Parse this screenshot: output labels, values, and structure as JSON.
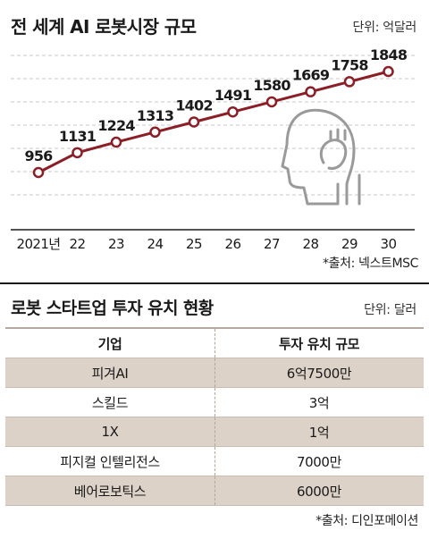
{
  "top": {
    "title": "전 세계 AI 로봇시장 규모",
    "unit": "단위: 억달러",
    "source": "*출처: 넥스트MSC"
  },
  "chart_data": {
    "type": "line",
    "title": "전 세계 AI 로봇시장 규모",
    "unit": "억달러",
    "categories": [
      "2021년",
      "22",
      "23",
      "24",
      "25",
      "26",
      "27",
      "28",
      "29",
      "30"
    ],
    "values": [
      956,
      1131,
      1224,
      1313,
      1402,
      1491,
      1580,
      1669,
      1758,
      1848
    ],
    "ylim": [
      600,
      2000
    ],
    "grid": true,
    "line_color": "#8b1e26",
    "grid_color": "#c9c9c9"
  },
  "bottom": {
    "title": "로봇 스타트업 투자 유치 현황",
    "unit": "단위: 달러",
    "source": "*출처: 디인포메이션",
    "headers": [
      "기업",
      "투자 유치 규모"
    ],
    "rows": [
      [
        "피겨AI",
        "6억7500만"
      ],
      [
        "스킬드",
        "3억"
      ],
      [
        "1X",
        "1억"
      ],
      [
        "피지컬 인텔리전스",
        "7000만"
      ],
      [
        "베어로보틱스",
        "6000만"
      ]
    ],
    "stripe_color": "#ddd2c8"
  }
}
